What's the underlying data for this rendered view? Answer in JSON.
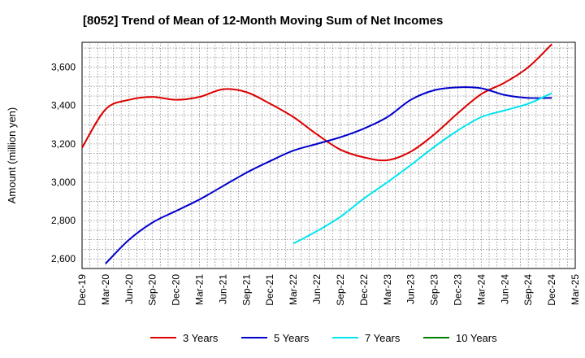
{
  "chart_data": {
    "type": "line",
    "title": "[8052]  Trend of Mean of 12-Month Moving Sum of Net Incomes",
    "xlabel": "",
    "ylabel": "Amount (million yen)",
    "x_ticks": [
      "Dec-19",
      "Mar-20",
      "Jun-20",
      "Sep-20",
      "Dec-20",
      "Mar-21",
      "Jun-21",
      "Sep-21",
      "Dec-21",
      "Mar-22",
      "Jun-22",
      "Sep-22",
      "Dec-22",
      "Mar-23",
      "Jun-23",
      "Sep-23",
      "Dec-23",
      "Mar-24",
      "Jun-24",
      "Sep-24",
      "Dec-24",
      "Mar-25"
    ],
    "y_ticks": [
      2600,
      2800,
      3000,
      3200,
      3400,
      3600
    ],
    "y_tick_labels": [
      "2,600",
      "2,800",
      "3,000",
      "3,200",
      "3,400",
      "3,600"
    ],
    "ylim": [
      2550,
      3730
    ],
    "grid": true,
    "legend_position": "bottom",
    "series": [
      {
        "name": "3 Years",
        "color": "#dd0000",
        "points": [
          [
            "Dec-19",
            3180
          ],
          [
            "Mar-20",
            3380
          ],
          [
            "Jun-20",
            3430
          ],
          [
            "Sep-20",
            3445
          ],
          [
            "Dec-20",
            3430
          ],
          [
            "Mar-21",
            3445
          ],
          [
            "Jun-21",
            3485
          ],
          [
            "Sep-21",
            3470
          ],
          [
            "Dec-21",
            3410
          ],
          [
            "Mar-22",
            3340
          ],
          [
            "Jun-22",
            3250
          ],
          [
            "Sep-22",
            3170
          ],
          [
            "Dec-22",
            3130
          ],
          [
            "Mar-23",
            3115
          ],
          [
            "Jun-23",
            3160
          ],
          [
            "Sep-23",
            3250
          ],
          [
            "Dec-23",
            3360
          ],
          [
            "Mar-24",
            3460
          ],
          [
            "Jun-24",
            3520
          ],
          [
            "Sep-24",
            3600
          ],
          [
            "Dec-24",
            3720
          ]
        ]
      },
      {
        "name": "5 Years",
        "color": "#0000cc",
        "points": [
          [
            "Mar-20",
            2575
          ],
          [
            "Jun-20",
            2700
          ],
          [
            "Sep-20",
            2790
          ],
          [
            "Dec-20",
            2850
          ],
          [
            "Mar-21",
            2910
          ],
          [
            "Jun-21",
            2980
          ],
          [
            "Sep-21",
            3050
          ],
          [
            "Dec-21",
            3110
          ],
          [
            "Mar-22",
            3165
          ],
          [
            "Jun-22",
            3200
          ],
          [
            "Sep-22",
            3235
          ],
          [
            "Dec-22",
            3280
          ],
          [
            "Mar-23",
            3340
          ],
          [
            "Jun-23",
            3430
          ],
          [
            "Sep-23",
            3480
          ],
          [
            "Dec-23",
            3495
          ],
          [
            "Mar-24",
            3490
          ],
          [
            "Jun-24",
            3455
          ],
          [
            "Sep-24",
            3440
          ],
          [
            "Dec-24",
            3440
          ]
        ]
      },
      {
        "name": "7 Years",
        "color": "#00e5ee",
        "points": [
          [
            "Mar-22",
            2680
          ],
          [
            "Jun-22",
            2745
          ],
          [
            "Sep-22",
            2820
          ],
          [
            "Dec-22",
            2915
          ],
          [
            "Mar-23",
            3000
          ],
          [
            "Jun-23",
            3090
          ],
          [
            "Sep-23",
            3185
          ],
          [
            "Dec-23",
            3270
          ],
          [
            "Mar-24",
            3340
          ],
          [
            "Jun-24",
            3375
          ],
          [
            "Sep-24",
            3410
          ],
          [
            "Dec-24",
            3465
          ]
        ]
      },
      {
        "name": "10 Years",
        "color": "#008000",
        "points": []
      }
    ]
  }
}
